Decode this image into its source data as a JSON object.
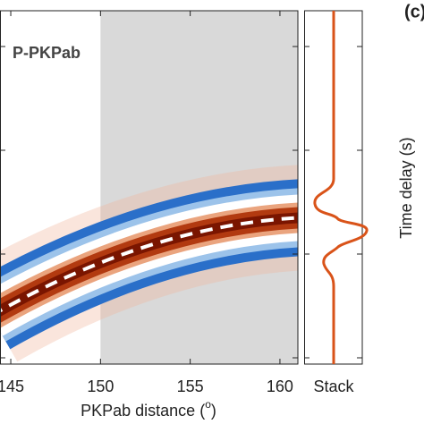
{
  "chart_data": {
    "type": "wavefield",
    "title": "P-PKPab",
    "panel_label": "(c)",
    "xlabel_parts": [
      "PKPab distance (",
      "o",
      ")"
    ],
    "ylabel": "Time delay (s)",
    "stack_label": "Stack",
    "xlim": [
      144.4,
      161
    ],
    "xticks": [
      145,
      150,
      155,
      160
    ],
    "shaded_from": 150,
    "shade_color": "#d9d9d9",
    "trace_color": "#d95319"
  }
}
